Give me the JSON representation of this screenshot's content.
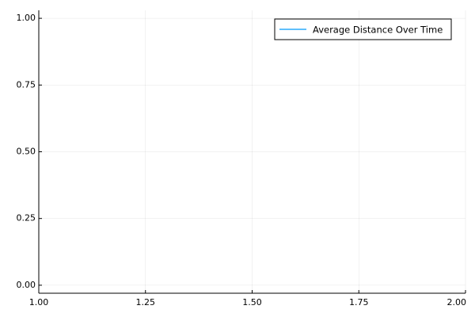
{
  "chart_data": {
    "type": "line",
    "title": "",
    "xlabel": "",
    "ylabel": "",
    "xlim": [
      1.0,
      2.0
    ],
    "ylim": [
      -0.03,
      1.03
    ],
    "x_ticks": [
      1.0,
      1.25,
      1.5,
      1.75,
      2.0
    ],
    "x_tick_labels": [
      "1.00",
      "1.25",
      "1.50",
      "1.75",
      "2.00"
    ],
    "y_ticks": [
      0.0,
      0.25,
      0.5,
      0.75,
      1.0
    ],
    "y_tick_labels": [
      "0.00",
      "0.25",
      "0.50",
      "0.75",
      "1.00"
    ],
    "grid": true,
    "legend_position": "top-right",
    "series": [
      {
        "name": "Average Distance Over Time",
        "color": "#009AFA",
        "x": [],
        "y": []
      }
    ]
  }
}
